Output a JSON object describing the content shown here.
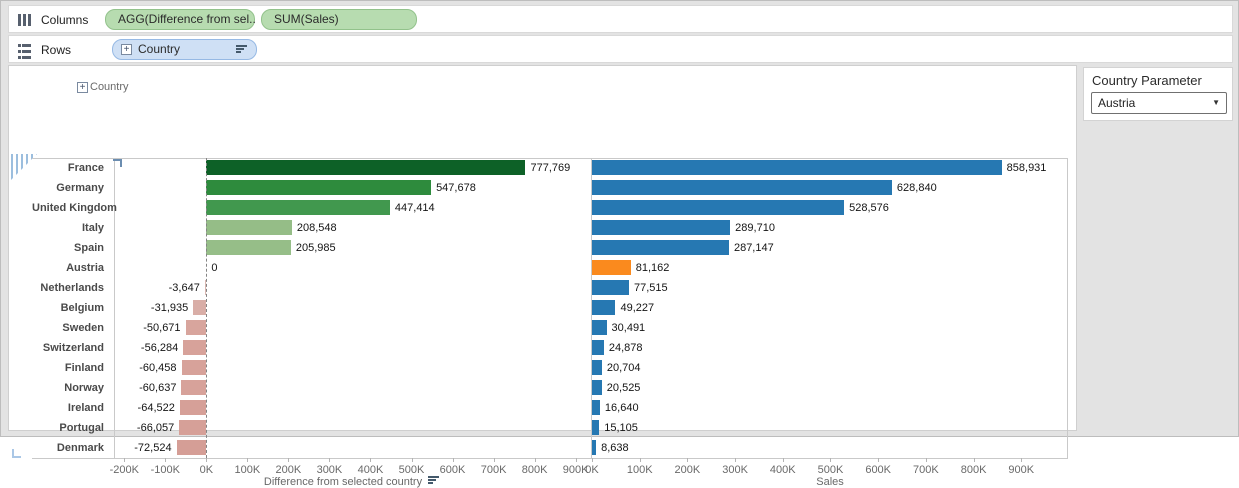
{
  "shelves": {
    "columns": {
      "label": "Columns",
      "pills": [
        {
          "label": "AGG(Difference from sel..",
          "type": "green"
        },
        {
          "label": "SUM(Sales)",
          "type": "green"
        }
      ]
    },
    "rows": {
      "label": "Rows",
      "pills": [
        {
          "label": "Country",
          "type": "blue",
          "expandable": true,
          "sorted": true
        }
      ]
    }
  },
  "row_header": {
    "field_label": "Country",
    "expand_glyph": "+"
  },
  "parameter_panel": {
    "title": "Country Parameter",
    "value": "Austria",
    "caret": "▼"
  },
  "colors": {
    "bar_blue": "#2678b2",
    "bar_orange": "#fa8a1e",
    "green_dark": "#0d6127",
    "green_mid": "#2e8b3d",
    "green_light": "#95bd87",
    "pink": "#d7a29a",
    "pill_green_bg": "#b7dcb0",
    "pill_blue_bg": "#cfe0f5"
  },
  "chart_data": [
    {
      "type": "bar",
      "orientation": "horizontal",
      "xlabel": "Difference from selected country",
      "categories": [
        "France",
        "Germany",
        "United Kingdom",
        "Italy",
        "Spain",
        "Austria",
        "Netherlands",
        "Belgium",
        "Sweden",
        "Switzerland",
        "Finland",
        "Norway",
        "Ireland",
        "Portugal",
        "Denmark"
      ],
      "values": [
        777769,
        547678,
        447414,
        208548,
        205985,
        0,
        -3647,
        -31935,
        -50671,
        -56284,
        -60458,
        -60637,
        -64522,
        -66057,
        -72524
      ],
      "value_labels": [
        "777,769",
        "547,678",
        "447,414",
        "208,548",
        "205,985",
        "0",
        "-3,647",
        "-31,935",
        "-50,671",
        "-56,284",
        "-60,458",
        "-60,637",
        "-64,522",
        "-66,057",
        "-72,524"
      ],
      "bar_colors": [
        "#0d6127",
        "#2e8b3d",
        "#41984e",
        "#95bd87",
        "#96be88",
        "#96be88",
        "#dbb9b3",
        "#d9aea7",
        "#d8a59d",
        "#d7a29a",
        "#d7a29a",
        "#d7a29a",
        "#d6a098",
        "#d6a098",
        "#d59e96"
      ],
      "xlim": [
        -225000,
        935000
      ],
      "tick_values": [
        -200000,
        -100000,
        0,
        100000,
        200000,
        300000,
        400000,
        500000,
        600000,
        700000,
        800000,
        900000
      ],
      "tick_labels": [
        "-200K",
        "-100K",
        "0K",
        "100K",
        "200K",
        "300K",
        "400K",
        "500K",
        "600K",
        "700K",
        "800K",
        "900K"
      ],
      "zero_reference_line": true,
      "grid": false,
      "sorted_descending": true
    },
    {
      "type": "bar",
      "orientation": "horizontal",
      "xlabel": "Sales",
      "categories": [
        "France",
        "Germany",
        "United Kingdom",
        "Italy",
        "Spain",
        "Austria",
        "Netherlands",
        "Belgium",
        "Sweden",
        "Switzerland",
        "Finland",
        "Norway",
        "Ireland",
        "Portugal",
        "Denmark"
      ],
      "values": [
        858931,
        628840,
        528576,
        289710,
        287147,
        81162,
        77515,
        49227,
        30491,
        24878,
        20704,
        20525,
        16640,
        15105,
        8638
      ],
      "value_labels": [
        "858,931",
        "628,840",
        "528,576",
        "289,710",
        "287,147",
        "81,162",
        "77,515",
        "49,227",
        "30,491",
        "24,878",
        "20,704",
        "20,525",
        "16,640",
        "15,105",
        "8,638"
      ],
      "bar_colors": [
        "#2678b2",
        "#2678b2",
        "#2678b2",
        "#2678b2",
        "#2678b2",
        "#fa8a1e",
        "#2678b2",
        "#2678b2",
        "#2678b2",
        "#2678b2",
        "#2678b2",
        "#2678b2",
        "#2678b2",
        "#2678b2",
        "#2678b2"
      ],
      "xlim": [
        0,
        998000
      ],
      "tick_values": [
        0,
        100000,
        200000,
        300000,
        400000,
        500000,
        600000,
        700000,
        800000,
        900000
      ],
      "tick_labels": [
        "0K",
        "100K",
        "200K",
        "300K",
        "400K",
        "500K",
        "600K",
        "700K",
        "800K",
        "900K"
      ],
      "grid": false,
      "highlighted_category": "Austria"
    }
  ]
}
